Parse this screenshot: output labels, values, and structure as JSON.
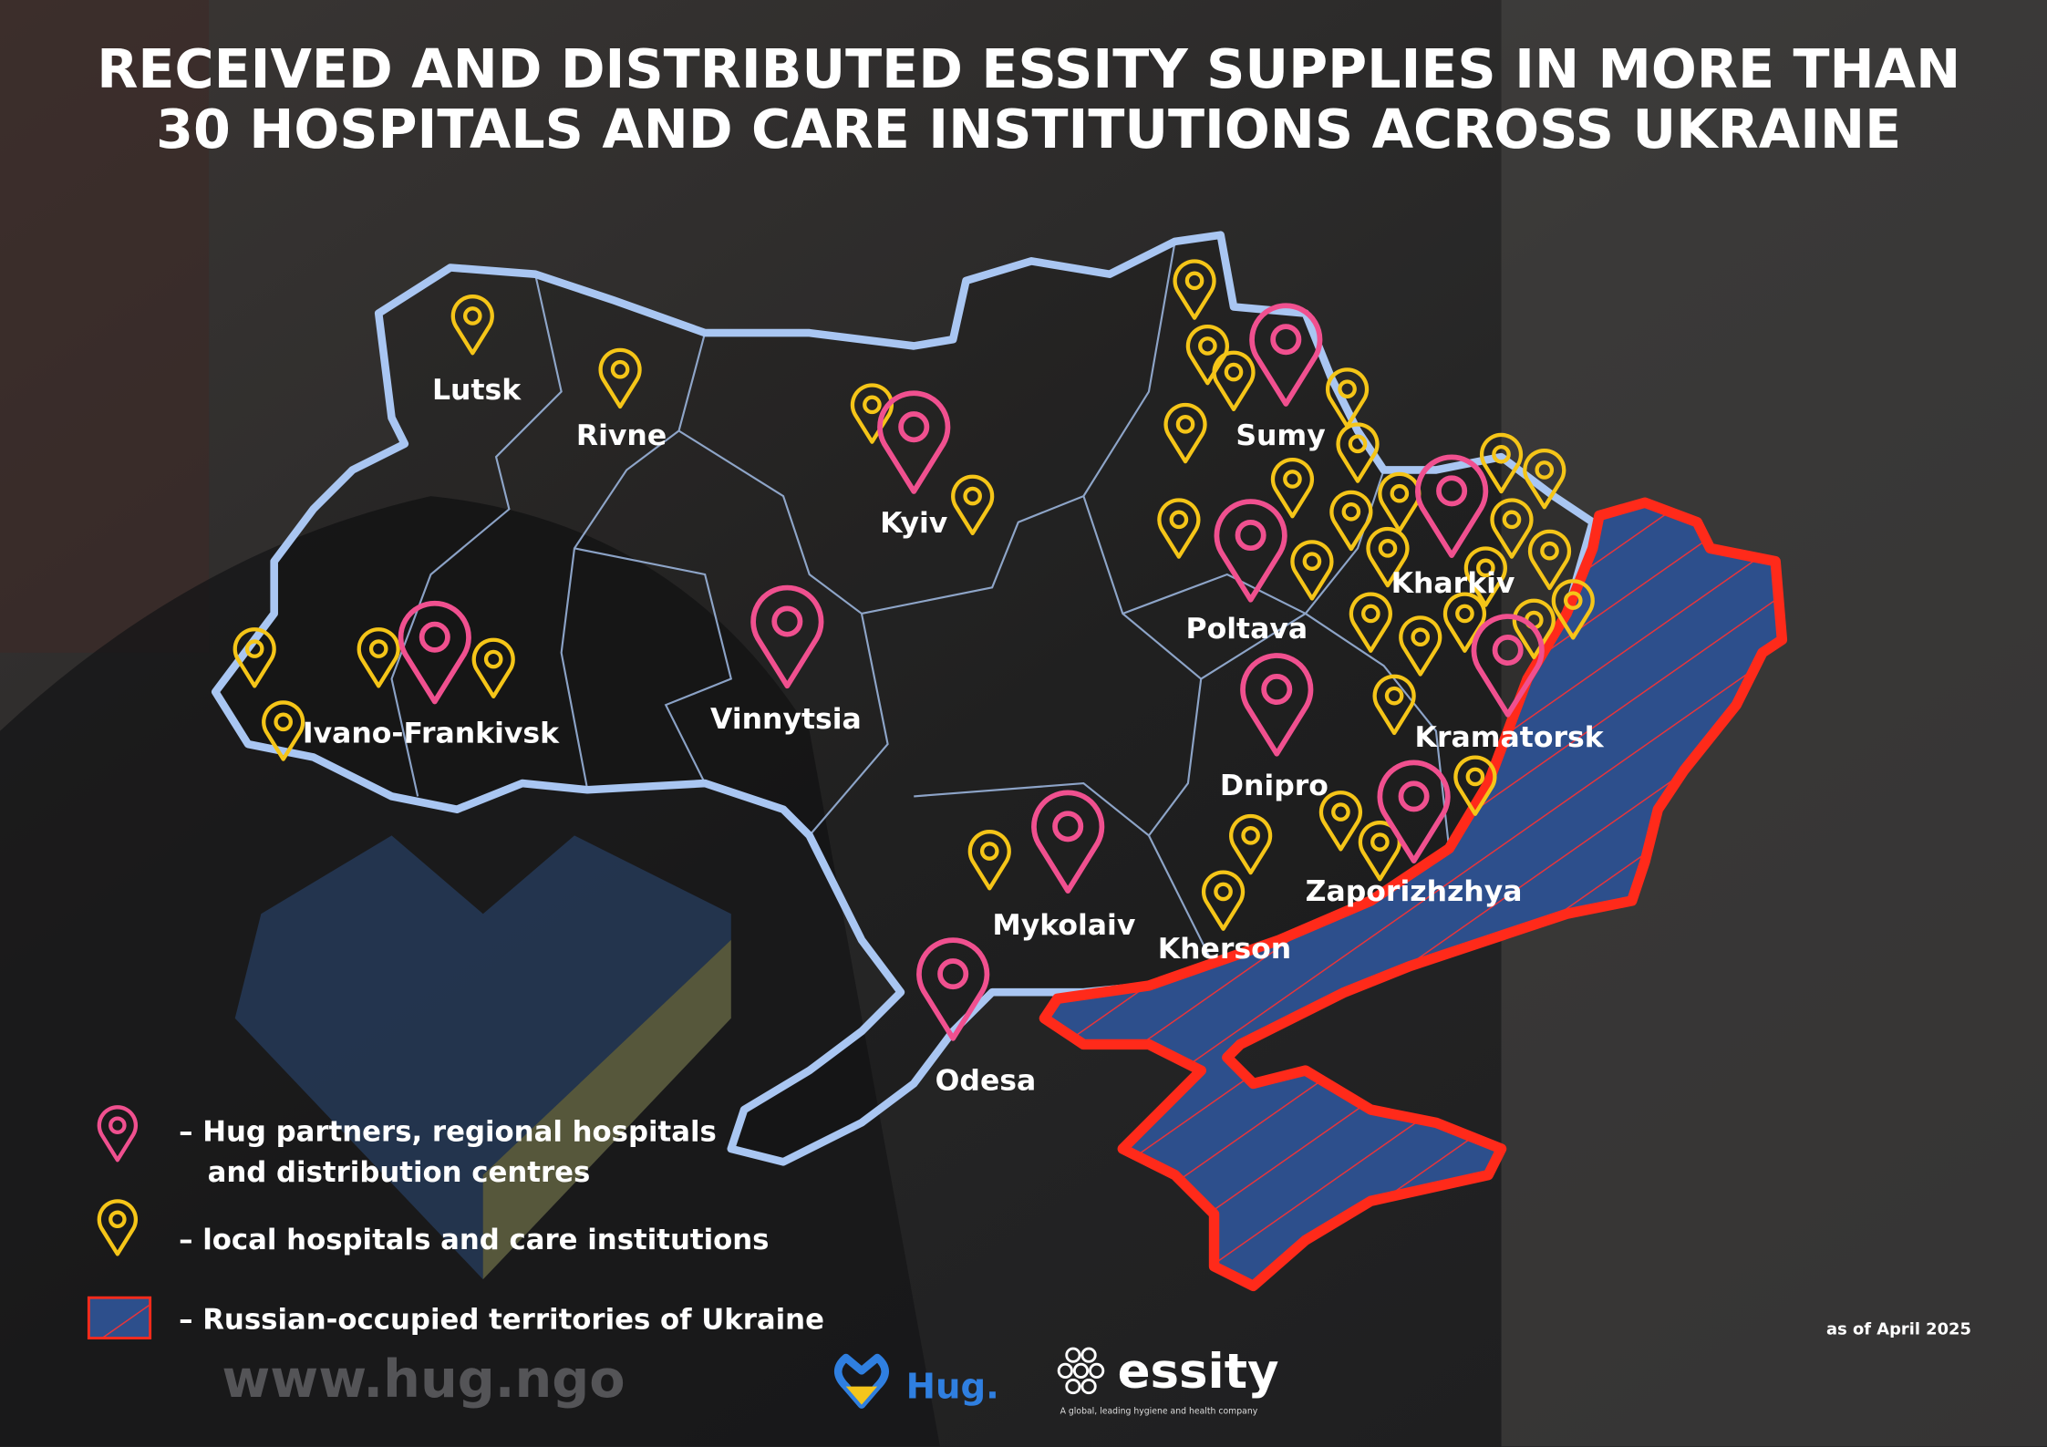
{
  "header": {
    "title_lines": [
      "RECEIVED AND DISTRIBUTED ESSITY SUPPLIES IN MORE THAN",
      "30 HOSPITALS AND CARE INSTITUTIONS ACROSS UKRAINE"
    ]
  },
  "map": {
    "cities": [
      "Lutsk",
      "Rivne",
      "Kyiv",
      "Sumy",
      "Kharkiv",
      "Poltava",
      "Vinnytsia",
      "Ivano-Frankivsk",
      "Dnipro",
      "Kramatorsk",
      "Zaporizhzhya",
      "Mykolaiv",
      "Kherson",
      "Odesa"
    ]
  },
  "legend": {
    "items": [
      {
        "lines": [
          "– Hug partners, regional hospitals",
          "and distribution centres"
        ]
      },
      {
        "lines": [
          "– local hospitals and care institutions"
        ]
      },
      {
        "lines": [
          "– Russian-occupied territories of Ukraine"
        ]
      }
    ]
  },
  "footer": {
    "date_note": "as of April 2025",
    "hug_logo": "Hug.",
    "essity_logo": "essity",
    "essity_tagline": "A global, leading hygiene and health company",
    "shirt_text": "www.hug.ngo"
  }
}
